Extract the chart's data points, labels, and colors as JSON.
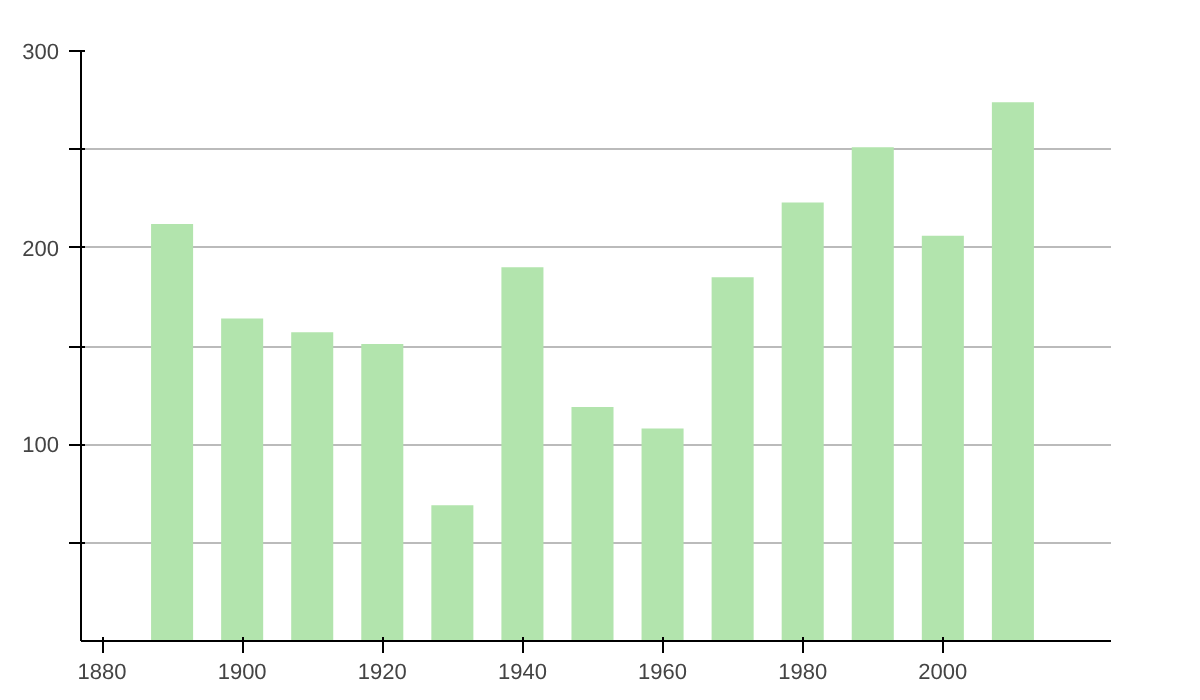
{
  "chart_data": {
    "type": "bar",
    "x": [
      1890,
      1900,
      1910,
      1920,
      1930,
      1940,
      1950,
      1960,
      1970,
      1980,
      1990,
      2000,
      2010
    ],
    "values": [
      212,
      164,
      157,
      151,
      69,
      190,
      119,
      108,
      185,
      223,
      251,
      206,
      274
    ],
    "color": "#b2e4ad",
    "xlim": [
      1877,
      2024
    ],
    "ylim": [
      0,
      300
    ],
    "xticks": [
      1880,
      1900,
      1920,
      1940,
      1960,
      1980,
      2000
    ],
    "yticks": [
      {
        "value": 50,
        "label": null
      },
      100,
      {
        "value": 150,
        "label": null
      },
      200,
      {
        "value": 250,
        "label": null
      },
      300
    ],
    "grid": "y"
  }
}
